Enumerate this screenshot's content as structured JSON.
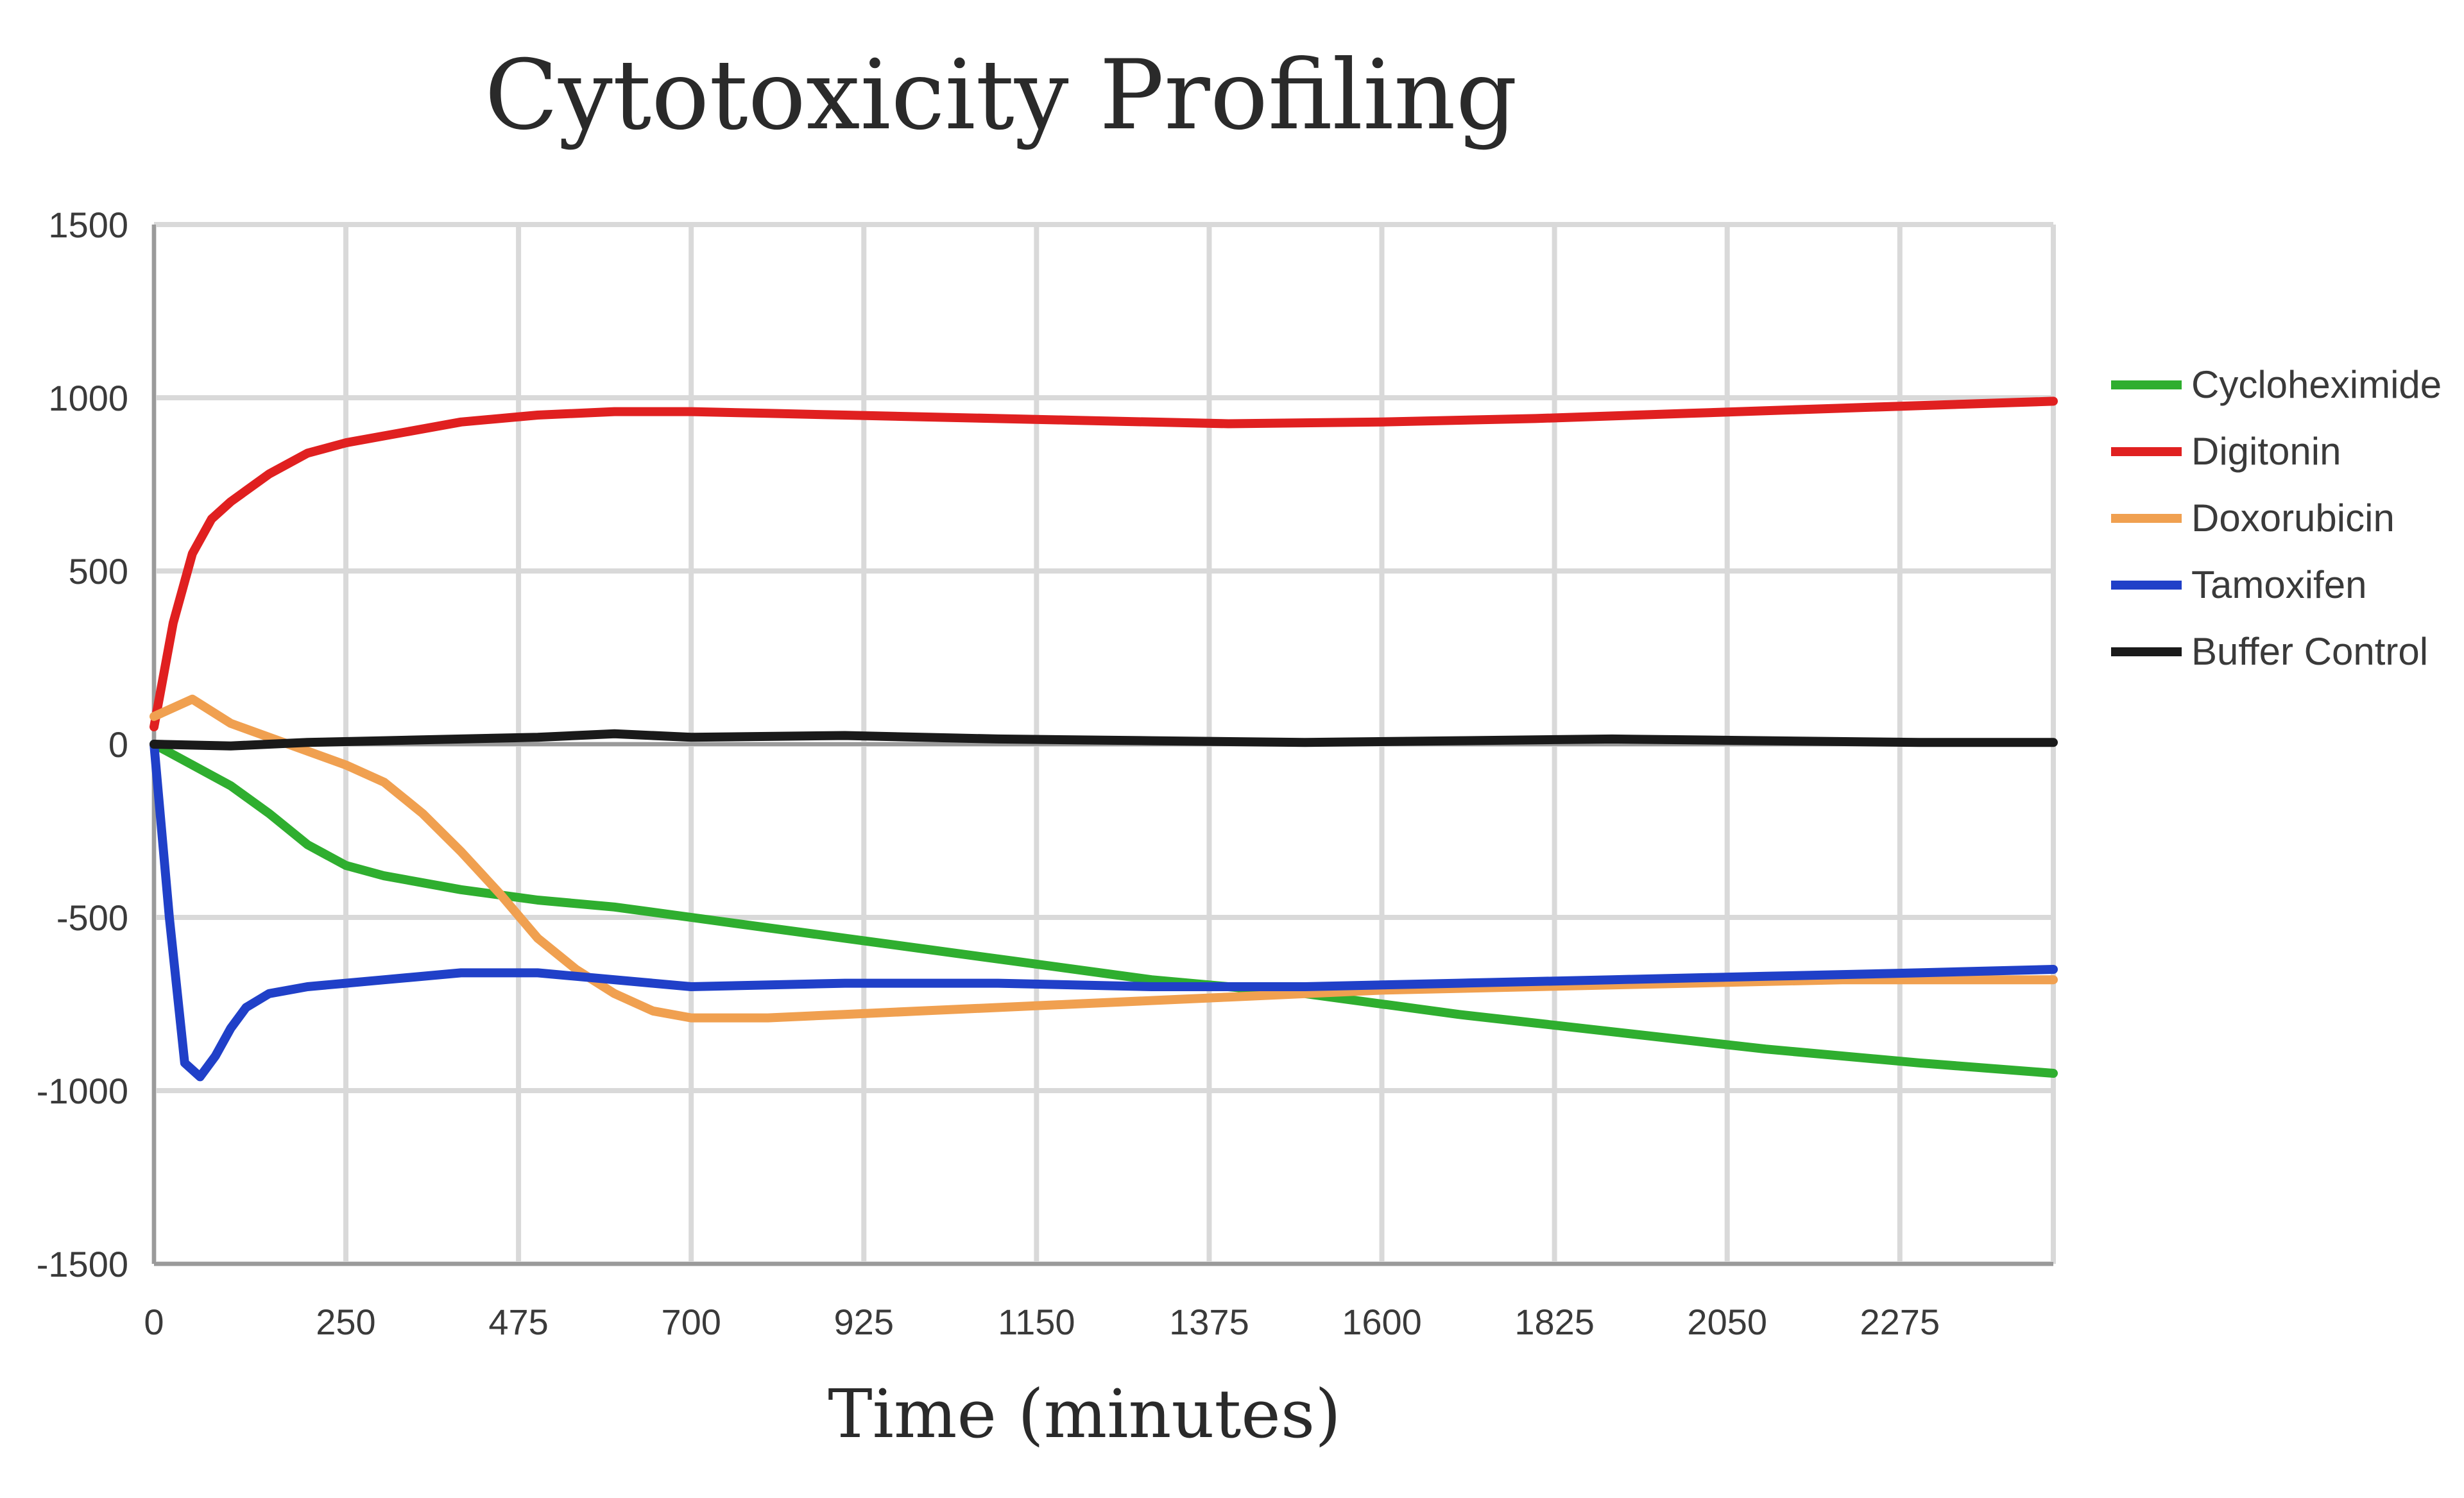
{
  "chart_data": {
    "type": "line",
    "title": "Cytotoxicity Profiling",
    "xlabel": "Time (minutes)",
    "ylabel": "",
    "xlim": [
      0,
      2475
    ],
    "ylim": [
      -1500,
      1500
    ],
    "xticks": [
      0,
      250,
      475,
      700,
      925,
      1150,
      1375,
      1600,
      1825,
      2050,
      2275
    ],
    "yticks": [
      1500,
      1000,
      500,
      0,
      -500,
      -1000,
      -1500
    ],
    "grid": true,
    "legend_position": "right",
    "series": [
      {
        "name": "Cycloheximide",
        "color": "#2fae2f",
        "x": [
          0,
          50,
          100,
          150,
          200,
          250,
          300,
          400,
          500,
          600,
          700,
          900,
          1100,
          1300,
          1500,
          1700,
          1900,
          2100,
          2300,
          2475
        ],
        "y": [
          0,
          -60,
          -120,
          -200,
          -290,
          -350,
          -380,
          -420,
          -450,
          -470,
          -500,
          -560,
          -620,
          -680,
          -720,
          -780,
          -830,
          -880,
          -920,
          -950
        ]
      },
      {
        "name": "Digitonin",
        "color": "#e02020",
        "x": [
          0,
          25,
          50,
          75,
          100,
          150,
          200,
          250,
          300,
          400,
          500,
          600,
          700,
          800,
          900,
          1000,
          1200,
          1400,
          1600,
          1800,
          2000,
          2200,
          2475
        ],
        "y": [
          50,
          350,
          550,
          650,
          700,
          780,
          840,
          870,
          890,
          930,
          950,
          960,
          960,
          955,
          950,
          945,
          935,
          925,
          930,
          940,
          955,
          970,
          990
        ]
      },
      {
        "name": "Doxorubicin",
        "color": "#f0a050",
        "x": [
          0,
          50,
          100,
          150,
          200,
          250,
          300,
          350,
          400,
          450,
          500,
          550,
          600,
          650,
          700,
          800,
          900,
          1000,
          1200,
          1400,
          1600,
          1800,
          2000,
          2200,
          2475
        ],
        "y": [
          80,
          130,
          60,
          20,
          -20,
          -60,
          -110,
          -200,
          -310,
          -430,
          -560,
          -650,
          -720,
          -770,
          -790,
          -790,
          -780,
          -770,
          -750,
          -730,
          -710,
          -700,
          -690,
          -680,
          -680
        ]
      },
      {
        "name": "Tamoxifen",
        "color": "#2040c8",
        "x": [
          0,
          20,
          40,
          60,
          80,
          100,
          120,
          150,
          200,
          250,
          300,
          400,
          500,
          600,
          700,
          900,
          1100,
          1300,
          1500,
          1700,
          1900,
          2100,
          2300,
          2475
        ],
        "y": [
          0,
          -500,
          -920,
          -960,
          -900,
          -820,
          -760,
          -720,
          -700,
          -690,
          -680,
          -660,
          -660,
          -680,
          -700,
          -690,
          -690,
          -700,
          -700,
          -690,
          -680,
          -670,
          -660,
          -650
        ]
      },
      {
        "name": "Buffer Control",
        "color": "#1a1a1a",
        "x": [
          0,
          100,
          200,
          300,
          400,
          500,
          600,
          700,
          900,
          1100,
          1300,
          1500,
          1700,
          1900,
          2100,
          2300,
          2475
        ],
        "y": [
          0,
          -5,
          5,
          10,
          15,
          20,
          30,
          20,
          25,
          15,
          10,
          5,
          10,
          15,
          10,
          5,
          5
        ]
      }
    ]
  }
}
